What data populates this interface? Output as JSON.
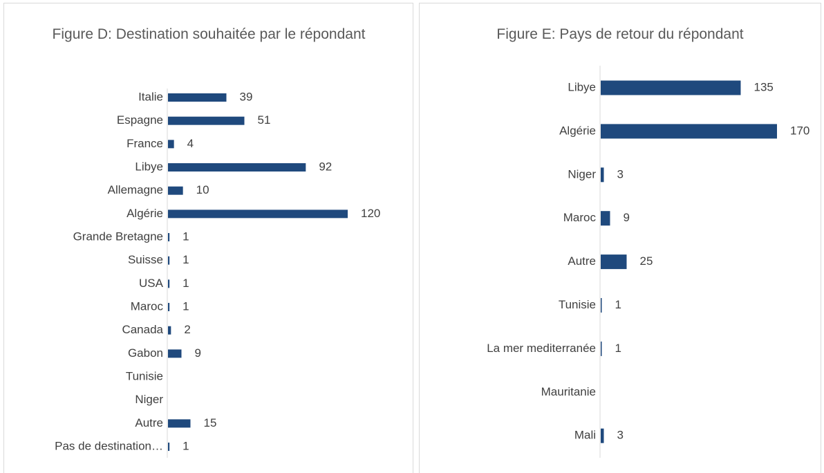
{
  "chart_data": [
    {
      "type": "bar",
      "orientation": "horizontal",
      "title": "Figure D: Destination souhaitée par le répondant",
      "categories": [
        "Italie",
        "Espagne",
        "France",
        "Libye",
        "Allemagne",
        "Algérie",
        "Grande Bretagne",
        "Suisse",
        "USA",
        "Maroc",
        "Canada",
        "Gabon",
        "Tunisie",
        "Niger",
        "Autre",
        "Pas de destination…"
      ],
      "values": [
        39,
        51,
        4,
        92,
        10,
        120,
        1,
        1,
        1,
        1,
        2,
        9,
        null,
        null,
        15,
        1
      ],
      "color": "#1f497d"
    },
    {
      "type": "bar",
      "orientation": "horizontal",
      "title": "Figure E: Pays de retour du répondant",
      "categories": [
        "Libye",
        "Algérie",
        "Niger",
        "Maroc",
        "Autre",
        "Tunisie",
        "La mer mediterranée",
        "Mauritanie",
        "Mali"
      ],
      "values": [
        135,
        170,
        3,
        9,
        25,
        1,
        1,
        null,
        3
      ],
      "color": "#1f497d"
    }
  ]
}
